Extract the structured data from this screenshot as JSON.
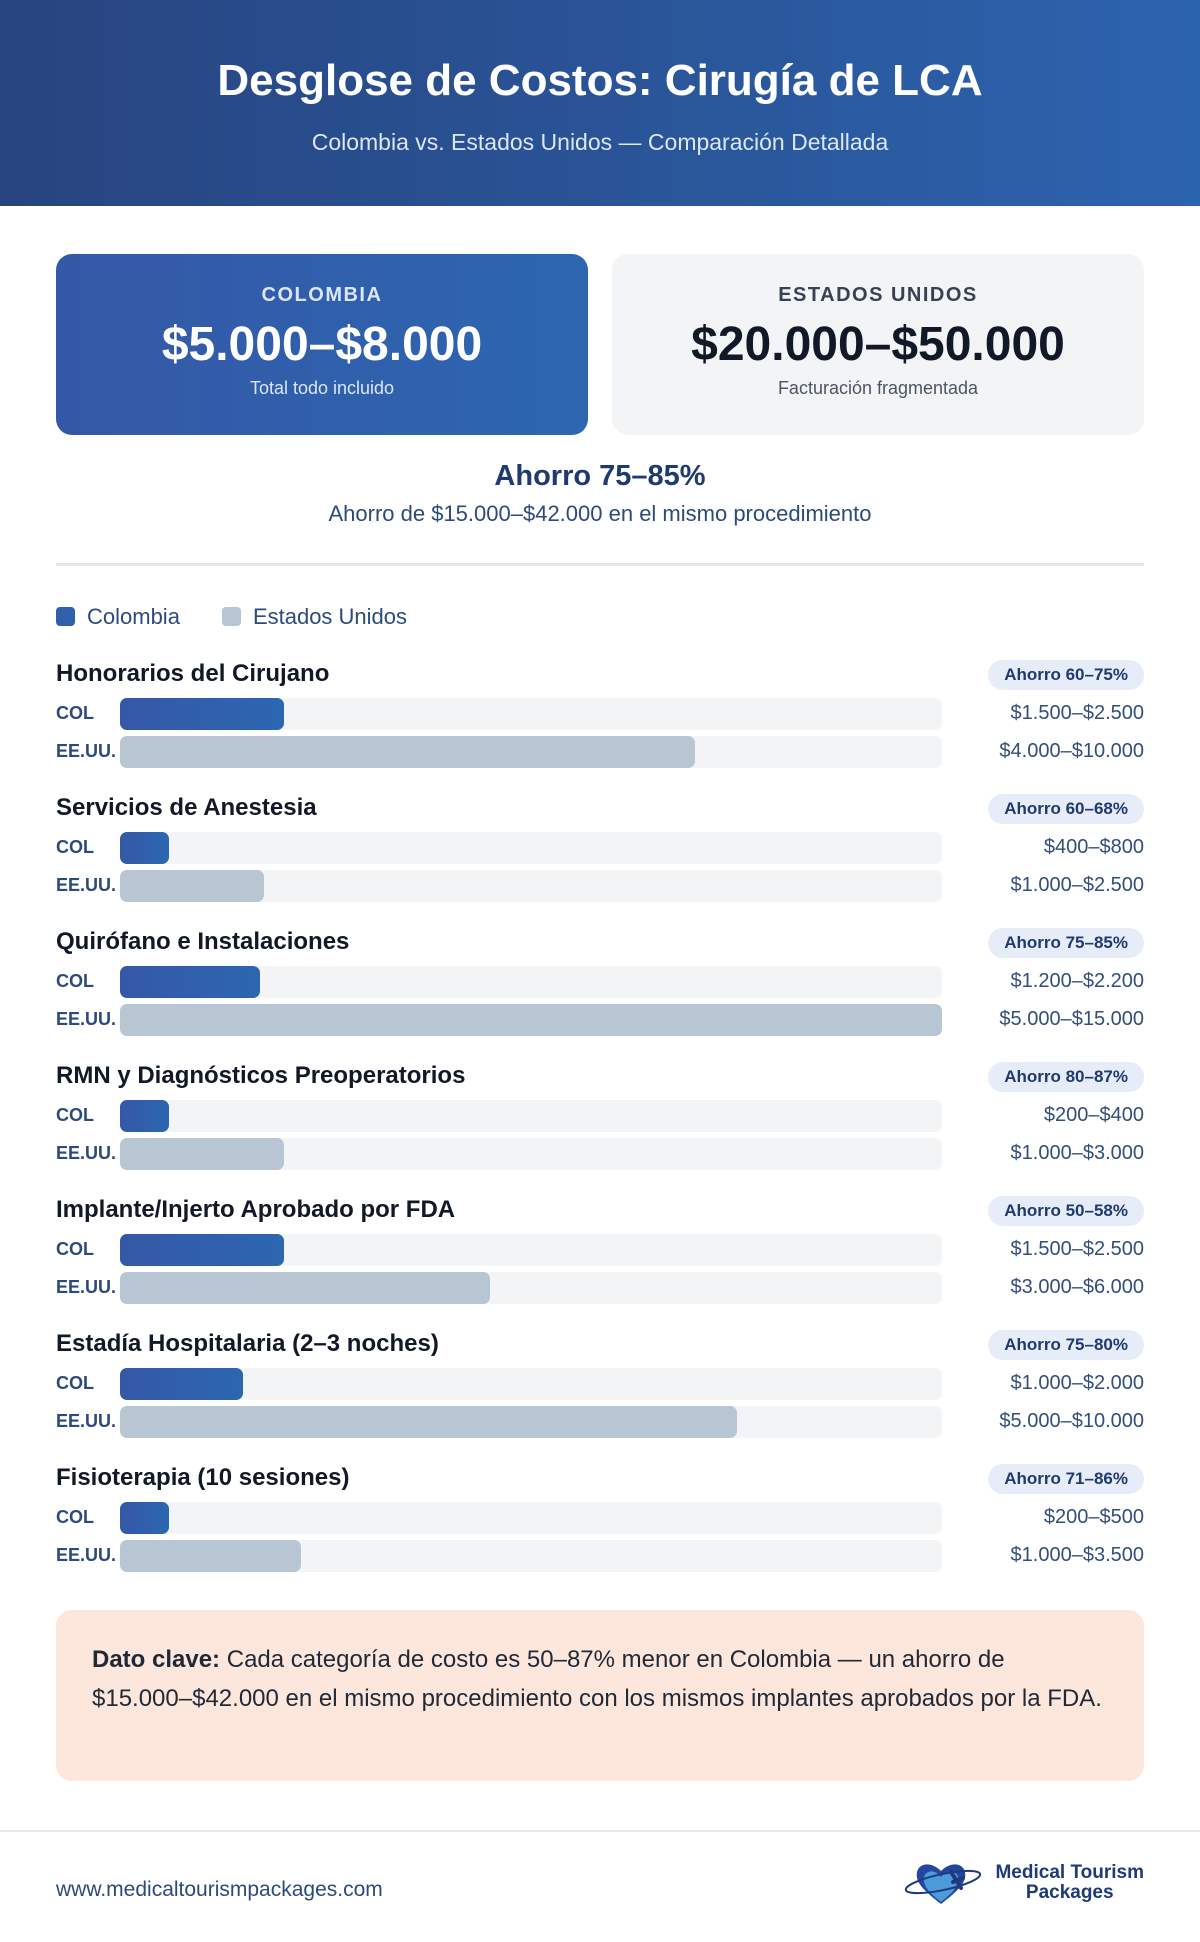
{
  "header": {
    "title": "Desglose de Costos: Cirugía de LCA",
    "subtitle": "Colombia vs. Estados Unidos — Comparación Detallada"
  },
  "cards": [
    {
      "label": "COLOMBIA",
      "price": "$5.000–$8.000",
      "note": "Total todo incluido"
    },
    {
      "label": "ESTADOS UNIDOS",
      "price": "$20.000–$50.000",
      "note": "Facturación fragmentada"
    }
  ],
  "savings": {
    "title": "Ahorro 75–85%",
    "detail": "Ahorro de $15.000–$42.000 en el mismo procedimiento"
  },
  "chart_data": {
    "type": "bar",
    "legend": [
      "Colombia",
      "Estados Unidos"
    ],
    "legend_placement": "top-left",
    "colors": {
      "Colombia": "#3060ab",
      "Estados Unidos": "#b8c5d3"
    },
    "row_labels": {
      "col": "COL",
      "us": "EE.UU."
    },
    "categories": [
      {
        "name": "Honorarios del Cirujano",
        "badge": "Ahorro 60–75%",
        "col": "$1.500–$2.500",
        "us": "$4.000–$10.000",
        "col_fill": 20,
        "us_fill": 70
      },
      {
        "name": "Servicios de Anestesia",
        "badge": "Ahorro 60–68%",
        "col": "$400–$800",
        "us": "$1.000–$2.500",
        "col_fill": 6,
        "us_fill": 17.5
      },
      {
        "name": "Quirófano e Instalaciones",
        "badge": "Ahorro 75–85%",
        "col": "$1.200–$2.200",
        "us": "$5.000–$15.000",
        "col_fill": 17,
        "us_fill": 100
      },
      {
        "name": "RMN y Diagnósticos Preoperatorios",
        "badge": "Ahorro 80–87%",
        "col": "$200–$400",
        "us": "$1.000–$3.000",
        "col_fill": 6,
        "us_fill": 20
      },
      {
        "name": "Implante/Injerto Aprobado por FDA",
        "badge": "Ahorro 50–58%",
        "col": "$1.500–$2.500",
        "us": "$3.000–$6.000",
        "col_fill": 20,
        "us_fill": 45
      },
      {
        "name": "Estadía Hospitalaria (2–3 noches)",
        "badge": "Ahorro 75–80%",
        "col": "$1.000–$2.000",
        "us": "$5.000–$10.000",
        "col_fill": 15,
        "us_fill": 75
      },
      {
        "name": "Fisioterapia (10 sesiones)",
        "badge": "Ahorro 71–86%",
        "col": "$200–$500",
        "us": "$1.000–$3.500",
        "col_fill": 6,
        "us_fill": 22
      }
    ]
  },
  "callout": {
    "label": "Dato clave:",
    "text": " Cada categoría de costo es 50–87% menor en Colombia — un ahorro de $15.000–$42.000 en el mismo procedimiento con los mismos implantes aprobados por la FDA."
  },
  "footer": {
    "url": "www.medicaltourismpackages.com",
    "logo_line1": "Medical Tourism",
    "logo_line2": "Packages"
  }
}
